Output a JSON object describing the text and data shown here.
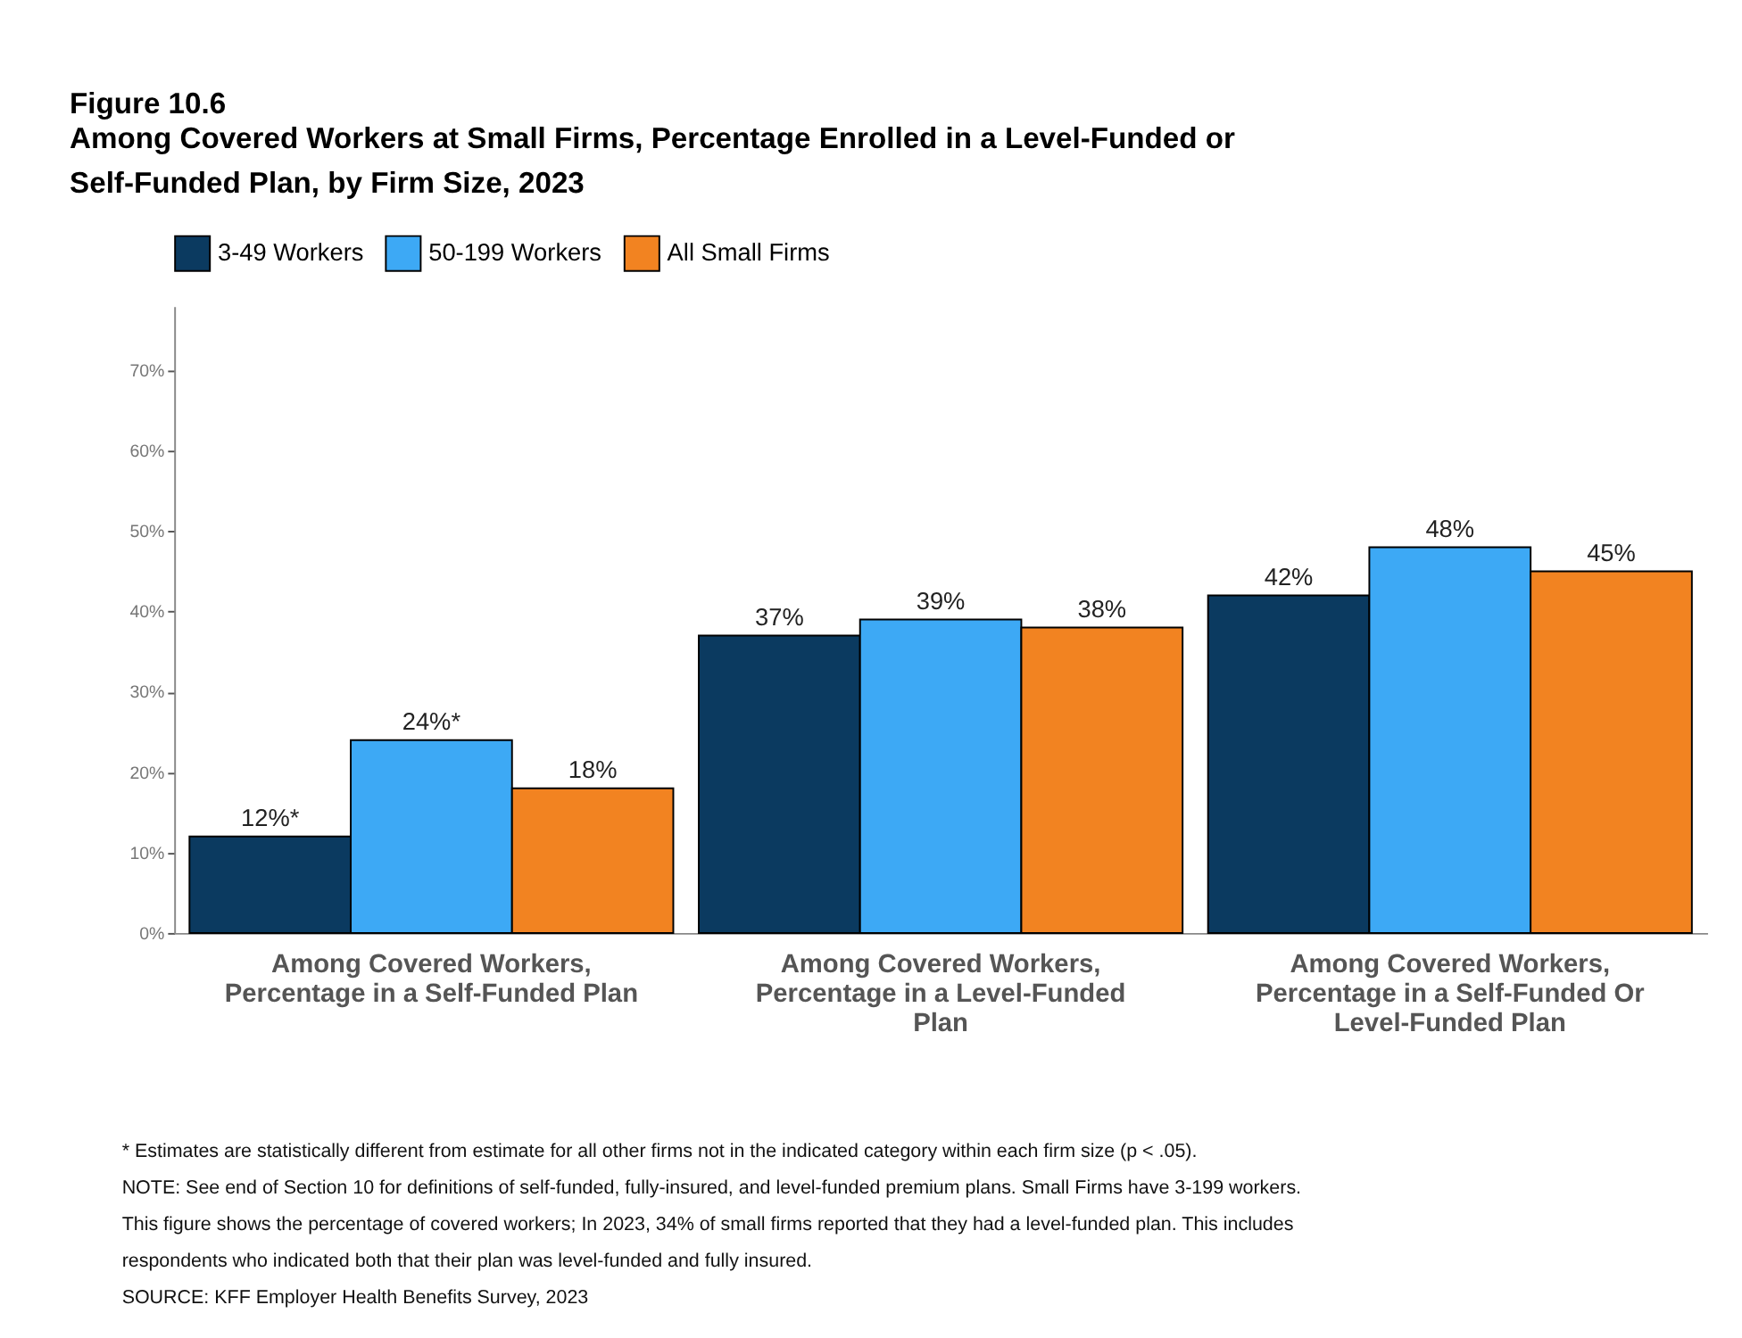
{
  "chart_data": {
    "type": "bar",
    "title": "Figure 10.6",
    "subtitle": "Among Covered Workers at Small Firms, Percentage Enrolled in a Level-Funded or\nSelf-Funded Plan, by Firm Size, 2023",
    "categories": [
      "Among Covered Workers,\nPercentage in a Self-Funded Plan",
      "Among Covered Workers,\nPercentage in a Level-Funded\nPlan",
      "Among Covered Workers,\nPercentage in a Self-Funded Or\nLevel-Funded Plan"
    ],
    "series": [
      {
        "name": "3-49 Workers",
        "color": "#0b3a60",
        "values": [
          12,
          37,
          42
        ],
        "value_labels": [
          "12%*",
          "37%",
          "42%"
        ]
      },
      {
        "name": "50-199 Workers",
        "color": "#3da9f5",
        "values": [
          24,
          39,
          48
        ],
        "value_labels": [
          "24%*",
          "39%",
          "48%"
        ]
      },
      {
        "name": "All Small Firms",
        "color": "#f28321",
        "values": [
          18,
          38,
          45
        ],
        "value_labels": [
          "18%",
          "38%",
          "45%"
        ]
      }
    ],
    "ylim": [
      0,
      78
    ],
    "yticks": [
      {
        "value": 0,
        "label": "0%"
      },
      {
        "value": 10,
        "label": "10%"
      },
      {
        "value": 20,
        "label": "20%"
      },
      {
        "value": 30,
        "label": "30%"
      },
      {
        "value": 40,
        "label": "40%"
      },
      {
        "value": 50,
        "label": "50%"
      },
      {
        "value": 60,
        "label": "60%"
      },
      {
        "value": 70,
        "label": "70%"
      }
    ],
    "grid": false,
    "legend": "top",
    "annotations": [
      "* Estimates are statistically different from estimate for all other firms not in the indicated category within each firm size (p < .05).",
      "NOTE: See end of Section 10 for definitions of self-funded, fully-insured, and level-funded premium plans. Small Firms have 3-199 workers. This figure shows the percentage of covered workers; In 2023, 34% of small firms reported that they had a level-funded plan. This includes respondents who indicated both that their plan was level-funded and fully insured.",
      "SOURCE: KFF Employer Health Benefits Survey, 2023"
    ]
  }
}
